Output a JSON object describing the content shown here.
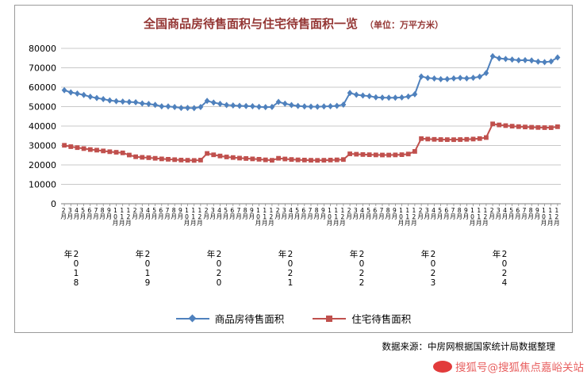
{
  "page": {
    "title": "全国商品房待售面积与住宅待售面积一览",
    "title_unit": "（单位：万平方米）",
    "title_color": "#943634",
    "source": "数据来源：中房网根据国家统计局数据整理",
    "watermark": "搜狐号@搜狐焦点嘉峪关站",
    "watermark_color": "#e86060",
    "watermark_logo_color": "#e23b3b"
  },
  "chart_data": {
    "type": "line",
    "title": "全国商品房待售面积与住宅待售面积一览",
    "unit": "万平方米",
    "xlabel": "",
    "ylabel": "",
    "ylim": [
      0,
      80000
    ],
    "ytick_step": 10000,
    "grid": true,
    "legend_position": "bottom",
    "x_years": [
      "2018年",
      "2019年",
      "2020年",
      "2021年",
      "2022年",
      "2023年",
      "2024年"
    ],
    "x_months_per_year": [
      "2月",
      "3月",
      "4月",
      "5月",
      "6月",
      "7月",
      "8月",
      "9月",
      "10月",
      "11月",
      "12月"
    ],
    "series": [
      {
        "name": "商品房待售面积",
        "color": "#4f81bd",
        "marker": "diamond",
        "values": [
          58468,
          57329,
          56726,
          56010,
          55083,
          54428,
          53873,
          53191,
          52789,
          52627,
          52414,
          52251,
          51646,
          51380,
          50928,
          50162,
          50081,
          49784,
          49346,
          49323,
          49221,
          49821,
          52958,
          52100,
          51450,
          50840,
          50620,
          50430,
          50310,
          50220,
          49920,
          49750,
          49850,
          52425,
          51520,
          50810,
          50340,
          50110,
          50000,
          49925,
          50090,
          50210,
          50430,
          51023,
          57026,
          56113,
          55735,
          55433,
          54784,
          54655,
          54605,
          54573,
          54734,
          55203,
          56366,
          65528,
          64770,
          64487,
          64120,
          64159,
          64564,
          64795,
          64537,
          64835,
          65385,
          67295,
          75969,
          74833,
          74553,
          74256,
          73894,
          73926,
          73783,
          73177,
          72909,
          73286,
          75327
        ]
      },
      {
        "name": "住宅待售面积",
        "color": "#c0504d",
        "marker": "square",
        "values": [
          30100,
          29400,
          28900,
          28400,
          27900,
          27600,
          27200,
          26800,
          26500,
          26200,
          25091,
          24200,
          23900,
          23700,
          23400,
          23100,
          22900,
          22700,
          22500,
          22400,
          22300,
          22473,
          25900,
          25200,
          24600,
          24100,
          23800,
          23500,
          23300,
          23100,
          22900,
          22600,
          22379,
          23412,
          23050,
          22800,
          22600,
          22500,
          22400,
          22350,
          22400,
          22500,
          22600,
          22761,
          25699,
          25500,
          25350,
          25250,
          25150,
          25100,
          25080,
          25150,
          25270,
          25600,
          26947,
          33539,
          33310,
          33160,
          33060,
          33010,
          32990,
          33050,
          33160,
          33310,
          33560,
          34090,
          41118,
          40580,
          40230,
          39940,
          39710,
          39520,
          39380,
          39270,
          39190,
          39160,
          39660
        ]
      }
    ]
  }
}
